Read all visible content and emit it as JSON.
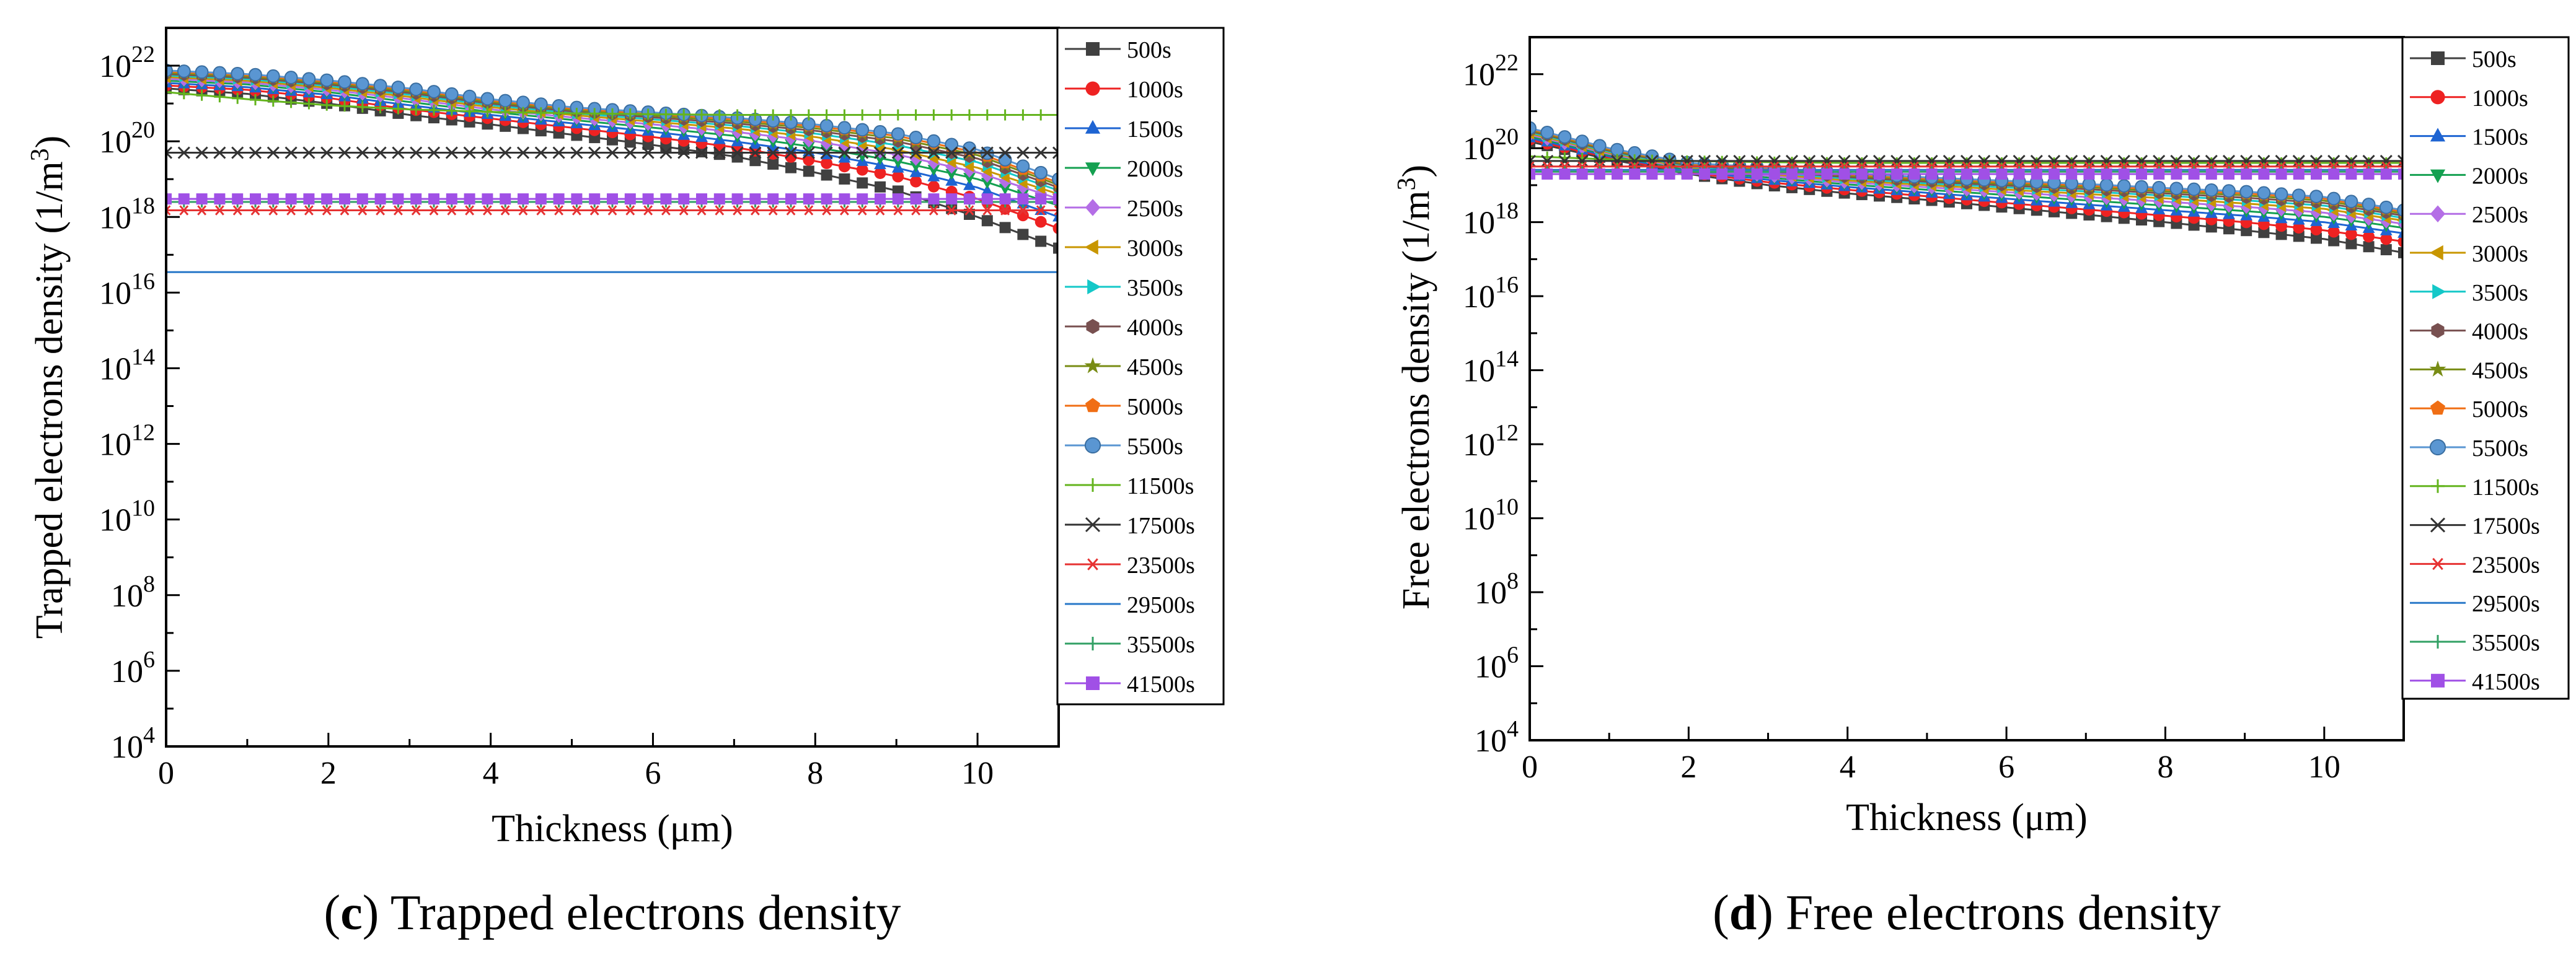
{
  "charts": [
    {
      "id": "c",
      "panel_letter": "c",
      "caption_text": " Trapped electrons density",
      "ylabel_main": "Trapped electrons density (1/m",
      "ylabel_sup": "3",
      "ylabel_end": ")",
      "xlabel": "Thickness (μm)"
    },
    {
      "id": "d",
      "panel_letter": "d",
      "caption_text": " Free electrons density",
      "ylabel_main": "Free electrons density (1/m",
      "ylabel_sup": "3",
      "ylabel_end": ")",
      "xlabel": "Thickness (μm)"
    }
  ],
  "axis": {
    "x_ticks": [
      "0",
      "2",
      "4",
      "6",
      "8",
      "10"
    ],
    "y_tick_base": "10",
    "y_tick_exponents": [
      "4",
      "6",
      "8",
      "10",
      "12",
      "14",
      "16",
      "18",
      "20",
      "22"
    ]
  },
  "legend": {
    "items": [
      "500s",
      "1000s",
      "1500s",
      "2000s",
      "2500s",
      "3000s",
      "3500s",
      "4000s",
      "4500s",
      "5000s",
      "5500s",
      "11500s",
      "17500s",
      "23500s",
      "29500s",
      "35500s",
      "41500s"
    ]
  },
  "series_style": [
    {
      "color": "#404040",
      "marker": "square"
    },
    {
      "color": "#ee2222",
      "marker": "circle"
    },
    {
      "color": "#1e64d2",
      "marker": "triangle-up"
    },
    {
      "color": "#14a050",
      "marker": "triangle-down"
    },
    {
      "color": "#b46ee6",
      "marker": "diamond"
    },
    {
      "color": "#c89600",
      "marker": "triangle-left"
    },
    {
      "color": "#14c8c8",
      "marker": "triangle-right"
    },
    {
      "color": "#785050",
      "marker": "hexagon"
    },
    {
      "color": "#788c14",
      "marker": "star"
    },
    {
      "color": "#f06e14",
      "marker": "pentagon"
    },
    {
      "color": "#5a96d2",
      "marker": "sphere"
    },
    {
      "color": "#64b41e",
      "marker": "plus"
    },
    {
      "color": "#333333",
      "marker": "cross"
    },
    {
      "color": "#e63232",
      "marker": "asterisk"
    },
    {
      "color": "#2878c8",
      "marker": "none"
    },
    {
      "color": "#32a064",
      "marker": "plus"
    },
    {
      "color": "#a050e6",
      "marker": "square"
    }
  ],
  "chart_data": [
    {
      "type": "line",
      "title": "(c) Trapped electrons density",
      "xlabel": "Thickness (μm)",
      "ylabel": "Trapped electrons density (1/m3)",
      "yscale": "log",
      "xlim": [
        0,
        11
      ],
      "ylim": [
        10000.0,
        1e+23
      ],
      "x": [
        0,
        1,
        2,
        3,
        4,
        5,
        6,
        7,
        8,
        9,
        10,
        11
      ],
      "series": [
        {
          "name": "500s",
          "values": [
            2.5e+21,
            1.8e+21,
            1e+21,
            5e+20,
            2.8e+20,
            1.5e+20,
            8e+19,
            4e+19,
            1.5e+19,
            5e+18,
            1e+18,
            1.5e+17
          ]
        },
        {
          "name": "1000s",
          "values": [
            3e+21,
            2.3e+21,
            1.4e+21,
            7e+20,
            4e+20,
            2.3e+20,
            1.3e+20,
            7e+19,
            3e+19,
            1.2e+19,
            3e+18,
            5e+17
          ]
        },
        {
          "name": "1500s",
          "values": [
            3.5e+21,
            2.7e+21,
            1.7e+21,
            9e+20,
            5e+20,
            3e+20,
            1.8e+20,
            1e+20,
            5e+19,
            2e+19,
            6e+18,
            1e+18
          ]
        },
        {
          "name": "2000s",
          "values": [
            4e+21,
            3.2e+21,
            2e+21,
            1.1e+21,
            6e+20,
            3.7e+20,
            2.3e+20,
            1.4e+20,
            7e+19,
            3e+19,
            1e+19,
            2e+18
          ]
        },
        {
          "name": "2500s",
          "values": [
            4.5e+21,
            3.6e+21,
            2.3e+21,
            1.3e+21,
            7e+20,
            4.3e+20,
            2.8e+20,
            1.8e+20,
            1e+20,
            4.5e+19,
            1.5e+19,
            3e+18
          ]
        },
        {
          "name": "3000s",
          "values": [
            5e+21,
            4e+21,
            2.6e+21,
            1.5e+21,
            8e+20,
            5e+20,
            3.3e+20,
            2.2e+20,
            1.3e+20,
            6e+19,
            2e+19,
            4e+18
          ]
        },
        {
          "name": "3500s",
          "values": [
            5.5e+21,
            4.4e+21,
            2.9e+21,
            1.7e+21,
            9e+20,
            5.6e+20,
            3.8e+20,
            2.6e+20,
            1.6e+20,
            8e+19,
            2.8e+19,
            5e+18
          ]
        },
        {
          "name": "4000s",
          "values": [
            6e+21,
            4.8e+21,
            3.2e+21,
            1.9e+21,
            1e+21,
            6.2e+20,
            4.3e+20,
            3e+20,
            1.9e+20,
            1e+20,
            3.5e+19,
            6e+18
          ]
        },
        {
          "name": "4500s",
          "values": [
            6.5e+21,
            5.2e+21,
            3.5e+21,
            2.1e+21,
            1.1e+21,
            6.8e+20,
            4.8e+20,
            3.4e+20,
            2.2e+20,
            1.2e+20,
            4.3e+19,
            7e+18
          ]
        },
        {
          "name": "5000s",
          "values": [
            7e+21,
            5.6e+21,
            3.8e+21,
            2.3e+21,
            1.2e+21,
            7.4e+20,
            5.3e+20,
            3.8e+20,
            2.5e+20,
            1.4e+20,
            5e+19,
            8e+18
          ]
        },
        {
          "name": "5500s",
          "values": [
            7.5e+21,
            6e+21,
            4.1e+21,
            2.5e+21,
            1.3e+21,
            8e+20,
            5.8e+20,
            4.2e+20,
            2.8e+20,
            1.6e+20,
            6e+19,
            1e+19
          ]
        },
        {
          "name": "11500s",
          "values": [
            2e+21,
            1.3e+21,
            9e+20,
            7e+20,
            6e+20,
            5.5e+20,
            5.2e+20,
            5e+20,
            5e+20,
            5e+20,
            5e+20,
            5e+20
          ]
        },
        {
          "name": "17500s",
          "values": [
            5e+19,
            5e+19,
            5e+19,
            5e+19,
            5e+19,
            5e+19,
            5e+19,
            5e+19,
            5e+19,
            5e+19,
            5e+19,
            5e+19
          ]
        },
        {
          "name": "23500s",
          "values": [
            1.5e+18,
            1.5e+18,
            1.5e+18,
            1.5e+18,
            1.5e+18,
            1.5e+18,
            1.5e+18,
            1.5e+18,
            1.5e+18,
            1.5e+18,
            1.5e+18,
            1.5e+18
          ]
        },
        {
          "name": "29500s",
          "values": [
            3.5e+16,
            3.5e+16,
            3.5e+16,
            3.5e+16,
            3.5e+16,
            3.5e+16,
            3.5e+16,
            3.5e+16,
            3.5e+16,
            3.5e+16,
            3.5e+16,
            3.5e+16
          ]
        },
        {
          "name": "35500s",
          "values": [
            2.5e+18,
            2.5e+18,
            2.5e+18,
            2.5e+18,
            2.5e+18,
            2.5e+18,
            2.5e+18,
            2.5e+18,
            2.5e+18,
            2.5e+18,
            2.5e+18,
            2.5e+18
          ]
        },
        {
          "name": "41500s",
          "values": [
            3e+18,
            3e+18,
            3e+18,
            3e+18,
            3e+18,
            3e+18,
            3e+18,
            3e+18,
            3e+18,
            3e+18,
            3e+18,
            3e+18
          ]
        }
      ]
    },
    {
      "type": "line",
      "title": "(d) Free electrons density",
      "xlabel": "Thickness (μm)",
      "ylabel": "Free electrons density (1/m3)",
      "yscale": "log",
      "xlim": [
        0,
        11
      ],
      "ylim": [
        10000.0,
        1e+23
      ],
      "x": [
        0,
        1,
        2,
        3,
        4,
        5,
        6,
        7,
        8,
        9,
        10,
        11
      ],
      "series": [
        {
          "name": "500s",
          "values": [
            1.5e+20,
            5e+19,
            2e+19,
            1e+19,
            6e+18,
            4e+18,
            2.5e+18,
            1.6e+18,
            1e+18,
            6e+17,
            3.5e+17,
            1.5e+17
          ]
        },
        {
          "name": "1000s",
          "values": [
            1.7e+20,
            5.5e+19,
            2.2e+19,
            1.2e+19,
            7.5e+18,
            5e+18,
            3.3e+18,
            2.2e+18,
            1.5e+18,
            1e+18,
            6e+17,
            3e+17
          ]
        },
        {
          "name": "1500s",
          "values": [
            1.9e+20,
            6e+19,
            2.4e+19,
            1.4e+19,
            9e+18,
            6.2e+18,
            4.3e+18,
            3e+18,
            2.1e+18,
            1.5e+18,
            1e+18,
            5e+17
          ]
        },
        {
          "name": "2000s",
          "values": [
            2.1e+20,
            6.5e+19,
            2.6e+19,
            1.6e+19,
            1.05e+19,
            7.5e+18,
            5.4e+18,
            3.9e+18,
            2.8e+18,
            2e+18,
            1.4e+18,
            7e+17
          ]
        },
        {
          "name": "2500s",
          "values": [
            2.3e+20,
            7e+19,
            2.8e+19,
            1.8e+19,
            1.2e+19,
            8.8e+18,
            6.5e+18,
            4.8e+18,
            3.6e+18,
            2.6e+18,
            1.8e+18,
            9e+17
          ]
        },
        {
          "name": "3000s",
          "values": [
            2.5e+20,
            7.5e+19,
            3e+19,
            2e+19,
            1.35e+19,
            1e+19,
            7.6e+18,
            5.8e+18,
            4.4e+18,
            3.2e+18,
            2.3e+18,
            1.1e+18
          ]
        },
        {
          "name": "3500s",
          "values": [
            2.7e+20,
            8e+19,
            3.2e+19,
            2.2e+19,
            1.5e+19,
            1.12e+19,
            8.7e+18,
            6.8e+18,
            5.2e+18,
            3.9e+18,
            2.8e+18,
            1.3e+18
          ]
        },
        {
          "name": "4000s",
          "values": [
            2.9e+20,
            8.5e+19,
            3.4e+19,
            2.4e+19,
            1.65e+19,
            1.25e+19,
            9.8e+18,
            7.8e+18,
            6e+18,
            4.6e+18,
            3.3e+18,
            1.5e+18
          ]
        },
        {
          "name": "4500s",
          "values": [
            3.1e+20,
            9e+19,
            3.6e+19,
            2.6e+19,
            1.8e+19,
            1.38e+19,
            1.09e+19,
            8.8e+18,
            6.8e+18,
            5.3e+18,
            3.8e+18,
            1.7e+18
          ]
        },
        {
          "name": "5000s",
          "values": [
            3.3e+20,
            9.5e+19,
            3.8e+19,
            2.8e+19,
            1.95e+19,
            1.5e+19,
            1.2e+19,
            9.8e+18,
            7.6e+18,
            6e+18,
            4.3e+18,
            1.9e+18
          ]
        },
        {
          "name": "5500s",
          "values": [
            3.5e+20,
            1e+20,
            4e+19,
            3e+19,
            2.1e+19,
            1.62e+19,
            1.31e+19,
            1.08e+19,
            8.4e+18,
            6.7e+18,
            4.8e+18,
            2.1e+18
          ]
        },
        {
          "name": "11500s",
          "values": [
            6e+19,
            5e+19,
            4.5e+19,
            4.2e+19,
            4e+19,
            4e+19,
            4e+19,
            4e+19,
            4e+19,
            4e+19,
            4e+19,
            4e+19
          ]
        },
        {
          "name": "17500s",
          "values": [
            4.5e+19,
            4.5e+19,
            4.5e+19,
            4.5e+19,
            4.5e+19,
            4.5e+19,
            4.5e+19,
            4.5e+19,
            4.5e+19,
            4.5e+19,
            4.5e+19,
            4.5e+19
          ]
        },
        {
          "name": "23500s",
          "values": [
            3.2e+19,
            3.2e+19,
            3.2e+19,
            3.2e+19,
            3.2e+19,
            3.2e+19,
            3.2e+19,
            3.2e+19,
            3.2e+19,
            3.2e+19,
            3.2e+19,
            3.2e+19
          ]
        },
        {
          "name": "29500s",
          "values": [
            2.6e+19,
            2.6e+19,
            2.6e+19,
            2.6e+19,
            2.6e+19,
            2.6e+19,
            2.6e+19,
            2.6e+19,
            2.6e+19,
            2.6e+19,
            2.6e+19,
            2.6e+19
          ]
        },
        {
          "name": "35500s",
          "values": [
            2.3e+19,
            2.3e+19,
            2.3e+19,
            2.3e+19,
            2.3e+19,
            2.3e+19,
            2.3e+19,
            2.3e+19,
            2.3e+19,
            2.3e+19,
            2.3e+19,
            2.3e+19
          ]
        },
        {
          "name": "41500s",
          "values": [
            2e+19,
            2e+19,
            2e+19,
            2e+19,
            2e+19,
            2e+19,
            2e+19,
            2e+19,
            2e+19,
            2e+19,
            2e+19,
            2e+19
          ]
        }
      ]
    }
  ]
}
